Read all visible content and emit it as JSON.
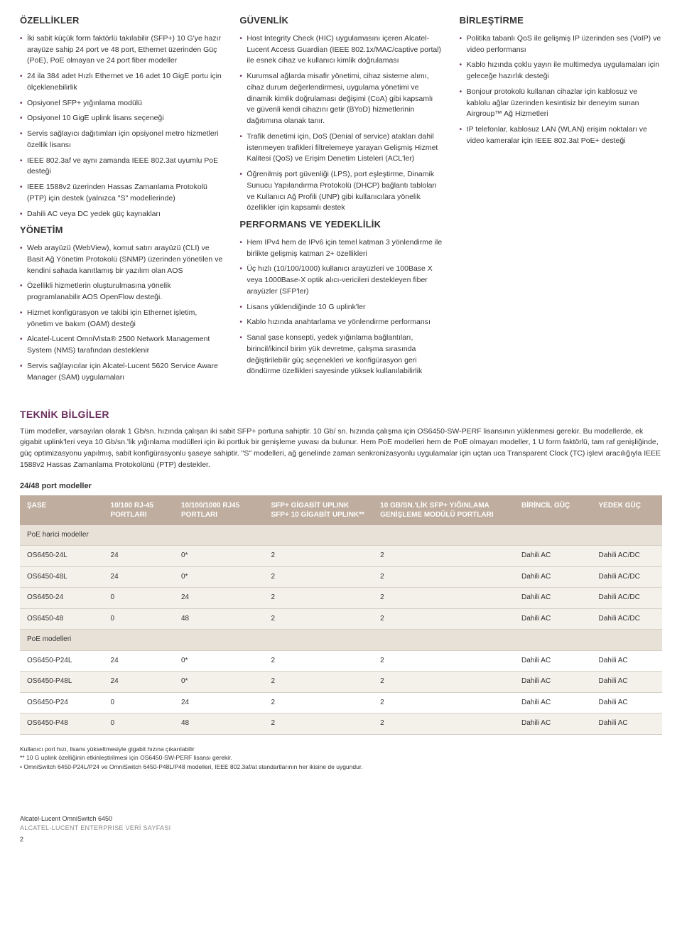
{
  "columns": [
    {
      "sections": [
        {
          "heading": "ÖZELLİKLER",
          "items": [
            "İki sabit küçük form faktörlü takılabilir (SFP+) 10 G'ye hazır arayüze sahip 24 port ve 48 port, Ethernet üzerinden Güç (PoE), PoE olmayan ve 24 port fiber modeller",
            "24 ila 384 adet Hızlı Ethernet ve 16 adet 10 GigE portu için ölçeklenebilirlik",
            "Opsiyonel SFP+ yığınlama modülü",
            "Opsiyonel 10 GigE uplink lisans seçeneği",
            "Servis sağlayıcı dağıtımları için opsiyonel metro hizmetleri özellik lisansı",
            "IEEE 802.3af ve aynı zamanda IEEE 802.3at uyumlu PoE desteği",
            "IEEE 1588v2 üzerinden Hassas Zamanlama Protokolü (PTP) için destek (yalnızca \"S\" modellerinde)",
            "Dahili AC veya DC yedek güç kaynakları"
          ]
        },
        {
          "heading": "YÖNETİM",
          "items": [
            "Web arayüzü (WebView), komut satırı arayüzü (CLI) ve Basit Ağ Yönetim Protokolü (SNMP) üzerinden yönetilen ve kendini sahada kanıtlamış bir yazılım olan AOS",
            "Özellikli hizmetlerin oluşturulmasına yönelik programlanabilir AOS OpenFlow desteği.",
            "Hizmet konfigürasyon ve takibi için Ethernet işletim, yönetim ve bakım (OAM) desteği",
            "Alcatel-Lucent OmniVista® 2500 Network Management System (NMS) tarafından desteklenir",
            "Servis sağlayıcılar için Alcatel-Lucent 5620 Service Aware Manager (SAM) uygulamaları"
          ]
        }
      ]
    },
    {
      "sections": [
        {
          "heading": "GÜVENLİK",
          "items": [
            "Host Integrity Check (HIC) uygulamasını içeren Alcatel-Lucent Access Guardian (IEEE 802.1x/MAC/captive portal) ile esnek cihaz ve kullanıcı kimlik doğrulaması",
            "Kurumsal ağlarda misafir yönetimi, cihaz sisteme alımı, cihaz durum değerlendirmesi, uygulama yönetimi ve dinamik kimlik doğrulaması değişimi (CoA) gibi kapsamlı ve güvenli kendi cihazını getir (BYoD) hizmetlerinin dağıtımına olanak tanır.",
            "Trafik denetimi için, DoS (Denial of service) atakları dahil istenmeyen trafikleri filtrelemeye yarayan Gelişmiş Hizmet Kalitesi (QoS) ve Erişim Denetim Listeleri (ACL'ler)",
            "Öğrenilmiş port güvenliği (LPS), port eşleştirme, Dinamik Sunucu Yapılandırma Protokolü (DHCP) bağlantı tabloları ve Kullanıcı Ağ Profili (UNP) gibi kullanıcılara yönelik özellikler için kapsamlı destek"
          ]
        },
        {
          "heading": "PERFORMANS VE YEDEKLİLİK",
          "items": [
            "Hem IPv4 hem de IPv6 için temel katman 3 yönlendirme ile birlikte gelişmiş katman 2+ özellikleri",
            "Üç hızlı (10/100/1000) kullanıcı arayüzleri ve 100Base X veya 1000Base-X optik alıcı-vericileri destekleyen fiber arayüzler (SFP'ler)",
            "Lisans yüklendiğinde 10 G uplink'ler",
            "Kablo hızında anahtarlama ve yönlendirme performansı",
            "Sanal şase konsepti, yedek yığınlama bağlantıları, birincil/ikincil birim yük devretme, çalışma sırasında değiştirilebilir güç seçenekleri ve konfigürasyon geri döndürme özellikleri sayesinde yüksek kullanılabilirlik"
          ]
        }
      ]
    },
    {
      "sections": [
        {
          "heading": "BİRLEŞTİRME",
          "items": [
            "Politika tabanlı QoS ile gelişmiş IP üzerinden ses (VoIP) ve video performansı",
            "Kablo hızında çoklu yayın ile multimedya uygulamaları için geleceğe hazırlık desteği",
            "Bonjour protokolü kullanan cihazlar için kablosuz ve kablolu ağlar üzerinden kesintisiz bir deneyim sunan Airgroup™ Ağ Hizmetleri",
            "IP telefonlar, kablosuz LAN (WLAN) erişim noktaları ve video kameralar için IEEE 802.3at PoE+ desteği"
          ]
        }
      ]
    }
  ],
  "teknik": {
    "title": "TEKNİK BİLGİLER",
    "desc": "Tüm modeller, varsayılan olarak 1 Gb/sn. hızında çalışan iki sabit SFP+ portuna sahiptir. 10 Gb/ sn. hızında çalışma için OS6450-SW-PERF lisansının yüklenmesi gerekir. Bu modellerde, ek gigabit uplink'leri veya 10 Gb/sn.'lik yığınlama modülleri için iki portluk bir genişleme yuvası da bulunur. Hem PoE modelleri hem de PoE olmayan modeller, 1 U form faktörlü, tam raf genişliğinde, güç optimizasyonu yapılmış, sabit konfigürasyonlu şaseye sahiptir. \"S\" modelleri, ağ genelinde zaman senkronizasyonlu uygulamalar için uçtan uca Transparent Clock (TC) işlevi aracılığıyla IEEE 1588v2 Hassas Zamanlama Protokolünü (PTP) destekler.",
    "subhead": "24/48 port modeller",
    "headers": [
      "ŞASE",
      "10/100 RJ-45 PORTLARI",
      "10/100/1000 RJ45 PORTLARI",
      "SFP+ GİGABİT UPLINK SFP+ 10 GİGABİT UPLINK**",
      "10 GB/SN.'LİK SFP+ YIĞINLAMA GENİŞLEME MODÜLÜ PORTLARI",
      "BİRİNCİL GÜÇ",
      "YEDEK GÜÇ"
    ],
    "col_widths": [
      "13%",
      "11%",
      "14%",
      "17%",
      "22%",
      "12%",
      "11%"
    ],
    "sections": [
      {
        "label": "PoE harici modeller",
        "rows": [
          [
            "OS6450-24L",
            "24",
            "0*",
            "2",
            "2",
            "Dahili AC",
            "Dahili AC/DC"
          ],
          [
            "OS6450-48L",
            "24",
            "0*",
            "2",
            "2",
            "Dahili AC",
            "Dahili AC/DC"
          ],
          [
            "OS6450-24",
            "0",
            "24",
            "2",
            "2",
            "Dahili AC",
            "Dahili AC/DC"
          ],
          [
            "OS6450-48",
            "0",
            "48",
            "2",
            "2",
            "Dahili AC",
            "Dahili AC/DC"
          ]
        ]
      },
      {
        "label": "PoE modelleri",
        "rows": [
          [
            "OS6450-P24L",
            "24",
            "0*",
            "2",
            "2",
            "Dahili AC",
            "Dahili AC"
          ],
          [
            "OS6450-P48L",
            "24",
            "0*",
            "2",
            "2",
            "Dahili AC",
            "Dahili AC"
          ],
          [
            "OS6450-P24",
            "0",
            "24",
            "2",
            "2",
            "Dahili AC",
            "Dahili AC"
          ],
          [
            "OS6450-P48",
            "0",
            "48",
            "2",
            "2",
            "Dahili AC",
            "Dahili AC"
          ]
        ]
      }
    ],
    "footnotes": [
      "Kullanıcı port hızı, lisans yükseltmesiyle gigabit hızına çıkarılabilir",
      "** 10 G uplink özelliğinin etkinleştirilmesi için OS6450-SW-PERF lisansı gerekir.",
      "• OmniSwitch 6450-P24L/P24 ve OmniSwitch 6450-P48L/P48 modelleri, IEEE 802.3af/at standartlarının her ikisine de uygundur."
    ]
  },
  "footer": {
    "line1": "Alcatel-Lucent OmniSwitch 6450",
    "line2": "ALCATEL-LUCENT ENTERPRISE VERİ SAYFASI",
    "page": "2"
  }
}
